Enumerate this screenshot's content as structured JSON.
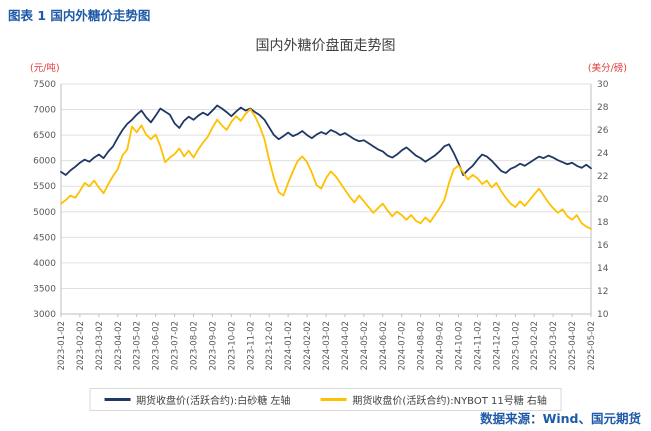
{
  "figure": {
    "caption": "图表 1 国内外糖价走势图"
  },
  "footer": {
    "source": "数据来源：Wind、国元期货"
  },
  "chart_data": {
    "type": "line",
    "title": "国内外糖价盘面走势图",
    "grid": true,
    "legend_position": "bottom",
    "left_axis": {
      "unit": "(元/吨)",
      "min": 3000,
      "max": 7500,
      "step": 500,
      "ticks": [
        3000,
        3500,
        4000,
        4500,
        5000,
        5500,
        6000,
        6500,
        7000,
        7500
      ]
    },
    "right_axis": {
      "unit": "(美分/磅)",
      "min": 10,
      "max": 30,
      "step": 2,
      "ticks": [
        10,
        12,
        14,
        16,
        18,
        20,
        22,
        24,
        26,
        28,
        30
      ]
    },
    "categories": [
      "2023-01-02",
      "2023-02-02",
      "2023-03-02",
      "2023-04-02",
      "2023-05-02",
      "2023-06-02",
      "2023-07-02",
      "2023-08-02",
      "2023-09-02",
      "2023-10-02",
      "2023-11-02",
      "2023-12-02",
      "2024-01-02",
      "2024-02-02",
      "2024-03-02",
      "2024-04-02",
      "2024-05-02",
      "2024-06-02",
      "2024-07-02",
      "2024-08-02",
      "2024-09-02",
      "2024-10-02",
      "2024-11-02",
      "2024-12-02",
      "2025-01-02",
      "2025-02-02",
      "2025-03-02",
      "2025-04-02",
      "2025-05-02"
    ],
    "series": [
      {
        "label": "期货收盘价(活跃合约):白砂糖 左轴",
        "axis": "left",
        "color": "#1f3864",
        "values": [
          5780,
          5720,
          5810,
          5880,
          5960,
          6020,
          5980,
          6060,
          6120,
          6050,
          6180,
          6280,
          6450,
          6600,
          6720,
          6800,
          6900,
          6980,
          6850,
          6750,
          6880,
          7020,
          6960,
          6900,
          6730,
          6640,
          6780,
          6860,
          6800,
          6880,
          6940,
          6890,
          6980,
          7080,
          7020,
          6950,
          6870,
          6960,
          7040,
          6980,
          7020,
          6950,
          6890,
          6800,
          6650,
          6500,
          6420,
          6480,
          6550,
          6480,
          6520,
          6580,
          6500,
          6440,
          6510,
          6560,
          6520,
          6600,
          6560,
          6500,
          6540,
          6480,
          6420,
          6380,
          6400,
          6340,
          6280,
          6220,
          6180,
          6100,
          6060,
          6120,
          6200,
          6260,
          6180,
          6100,
          6050,
          5980,
          6040,
          6100,
          6180,
          6280,
          6320,
          6150,
          5950,
          5720,
          5820,
          5900,
          6020,
          6120,
          6080,
          6000,
          5900,
          5800,
          5760,
          5840,
          5880,
          5940,
          5900,
          5960,
          6020,
          6080,
          6050,
          6100,
          6060,
          6010,
          5970,
          5930,
          5960,
          5900,
          5860,
          5920,
          5850
        ]
      },
      {
        "label": "期货收盘价(活跃合约):NYBOT 11号糖 右轴",
        "axis": "right",
        "color": "#ffc000",
        "values": [
          19.6,
          19.9,
          20.3,
          20.1,
          20.7,
          21.4,
          21.1,
          21.6,
          21.0,
          20.5,
          21.3,
          22.0,
          22.6,
          23.8,
          24.3,
          26.3,
          25.8,
          26.4,
          25.6,
          25.2,
          25.6,
          24.6,
          23.2,
          23.6,
          23.9,
          24.4,
          23.7,
          24.2,
          23.6,
          24.3,
          24.9,
          25.4,
          26.2,
          26.9,
          26.4,
          26.0,
          26.7,
          27.2,
          26.8,
          27.4,
          27.8,
          27.2,
          26.3,
          25.2,
          23.4,
          21.8,
          20.6,
          20.3,
          21.4,
          22.4,
          23.3,
          23.7,
          23.2,
          22.3,
          21.2,
          20.9,
          21.8,
          22.4,
          22.0,
          21.4,
          20.8,
          20.2,
          19.7,
          20.3,
          19.8,
          19.3,
          18.8,
          19.2,
          19.6,
          19.0,
          18.5,
          18.9,
          18.6,
          18.2,
          18.6,
          18.1,
          17.9,
          18.4,
          18.0,
          18.6,
          19.2,
          19.9,
          21.4,
          22.6,
          22.9,
          22.3,
          21.7,
          22.1,
          21.8,
          21.3,
          21.6,
          21.0,
          21.4,
          20.7,
          20.1,
          19.6,
          19.3,
          19.8,
          19.4,
          19.9,
          20.4,
          20.9,
          20.3,
          19.7,
          19.2,
          18.8,
          19.1,
          18.5,
          18.2,
          18.6,
          17.9,
          17.6,
          17.4
        ]
      }
    ],
    "style": {
      "grid_color": "#e0e0e0",
      "axis_color": "#bfbfbf",
      "tick_color": "#595959",
      "accent_blue": "#1f5aa8",
      "unit_color": "#e43b3b"
    }
  }
}
